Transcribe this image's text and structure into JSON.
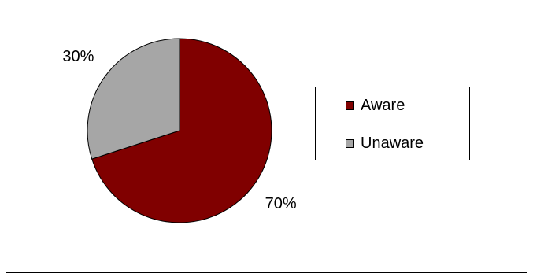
{
  "chart_data": {
    "type": "pie",
    "title": "",
    "categories": [
      "Aware",
      "Unaware"
    ],
    "values": [
      70,
      30
    ],
    "data_labels": [
      "70%",
      "30%"
    ],
    "colors": [
      "#800000",
      "#a6a6a6"
    ],
    "legend_position": "right",
    "start_angle": "12 o'clock, clockwise"
  },
  "legend": {
    "items": [
      {
        "label": "Aware",
        "color": "#800000"
      },
      {
        "label": "Unaware",
        "color": "#a6a6a6"
      }
    ]
  }
}
